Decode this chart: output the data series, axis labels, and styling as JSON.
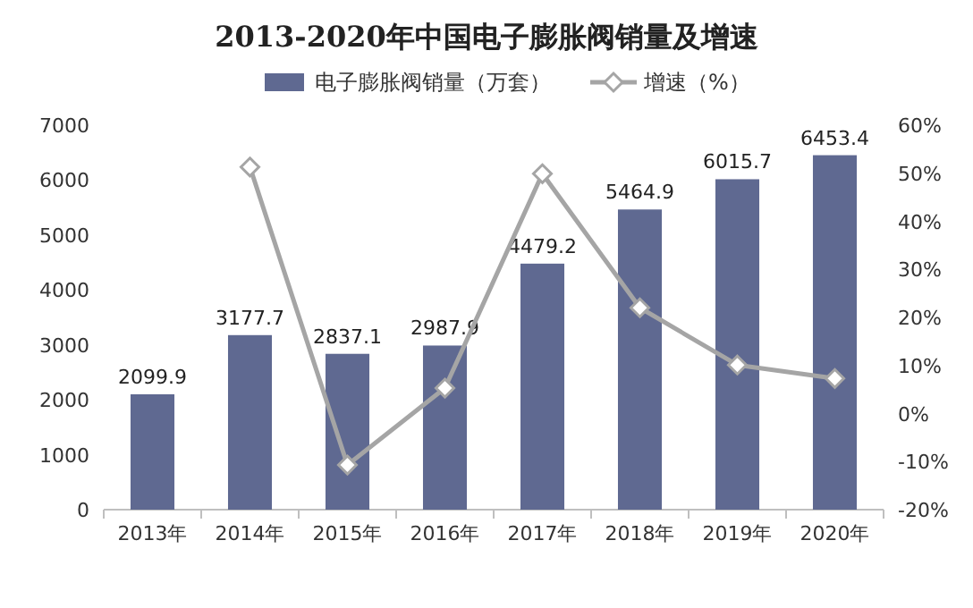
{
  "chart_data": {
    "type": "bar",
    "title": "2013-2020年中国电子膨胀阀销量及增速",
    "categories": [
      "2013年",
      "2014年",
      "2015年",
      "2016年",
      "2017年",
      "2018年",
      "2019年",
      "2020年"
    ],
    "series": [
      {
        "name": "电子膨胀阀销量（万套）",
        "color": "#5f6991",
        "values": [
          2099.9,
          3177.7,
          2837.1,
          2987.9,
          4479.2,
          5464.9,
          6015.7,
          6453.4
        ],
        "data_labels": true
      },
      {
        "name": "增速（%）",
        "type": "line",
        "axis": "y2",
        "color": "#a5a5a5",
        "marker": "diamond",
        "values": [
          null,
          51.3,
          -10.7,
          5.3,
          49.9,
          22.0,
          10.1,
          7.3
        ]
      }
    ],
    "ylim": [
      0,
      7000
    ],
    "yticks": [
      0,
      1000,
      2000,
      3000,
      4000,
      5000,
      6000,
      7000
    ],
    "y2lim": [
      -20,
      60
    ],
    "y2ticks": [
      {
        "value": -20,
        "label": "-20%"
      },
      {
        "value": -10,
        "label": "-10%"
      },
      {
        "value": 0,
        "label": "0%"
      },
      {
        "value": 10,
        "label": "10%"
      },
      {
        "value": 20,
        "label": "20%"
      },
      {
        "value": 30,
        "label": "30%"
      },
      {
        "value": 40,
        "label": "40%"
      },
      {
        "value": 50,
        "label": "50%"
      },
      {
        "value": 60,
        "label": "60%"
      }
    ],
    "legend": "top"
  }
}
